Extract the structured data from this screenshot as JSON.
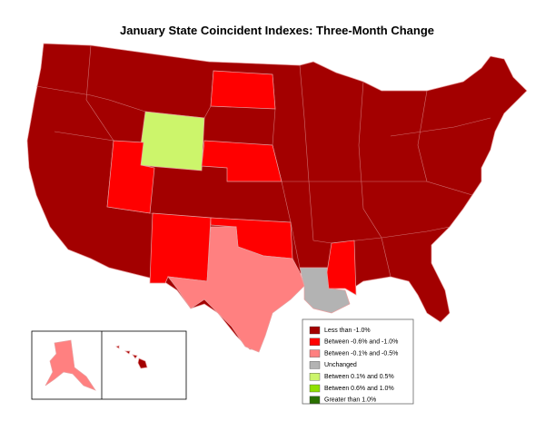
{
  "title": "January State Coincident Indexes: Three-Month Change",
  "legend": [
    {
      "label": "Less than -1.0%",
      "color": "#a30000"
    },
    {
      "label": "Between -0.6% and -1.0%",
      "color": "#ff0000"
    },
    {
      "label": "Between -0.1% and -0.5%",
      "color": "#ff8080"
    },
    {
      "label": "Unchanged",
      "color": "#b3b3b3"
    },
    {
      "label": "Between 0.1% and 0.5%",
      "color": "#ccf56b"
    },
    {
      "label": "Between 0.6% and 1.0%",
      "color": "#8fe000"
    },
    {
      "label": "Greater than 1.0%",
      "color": "#2a7000"
    }
  ]
}
